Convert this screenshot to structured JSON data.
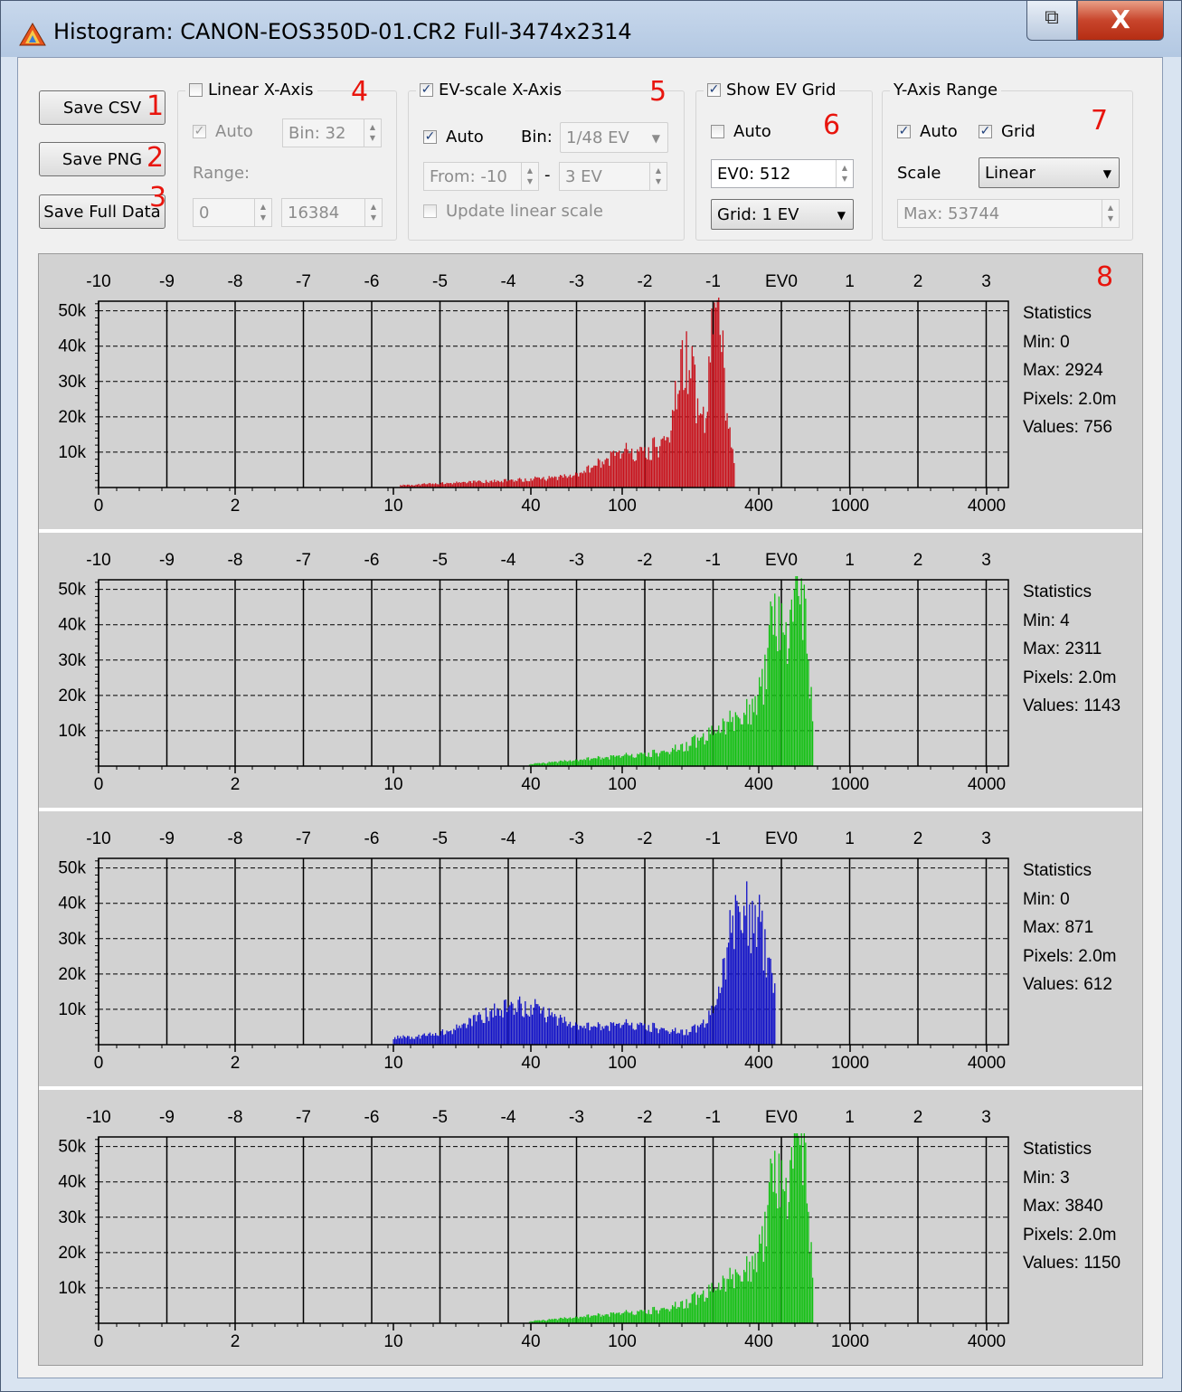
{
  "window": {
    "title": "Histogram: CANON-EOS350D-01.CR2 Full-3474x2314",
    "close_glyph": "X",
    "restore_glyph": "⧉"
  },
  "buttons": {
    "save_csv": "Save CSV",
    "save_png": "Save PNG",
    "save_full_data": "Save Full Data"
  },
  "linear_axis": {
    "title": "Linear X-Axis",
    "checked": false,
    "auto_label": "Auto",
    "auto_checked": true,
    "bin": "Bin: 32",
    "range_label": "Range:",
    "range_from": "0",
    "range_to": "16384"
  },
  "ev_axis": {
    "title": "EV-scale X-Axis",
    "checked": true,
    "auto_label": "Auto",
    "auto_checked": true,
    "bin_label": "Bin:",
    "bin_value": "1/48 EV",
    "from": "From: -10",
    "dash": "-",
    "to": "3 EV",
    "update_label": "Update linear scale",
    "update_checked": false
  },
  "ev_grid": {
    "title": "Show EV Grid",
    "checked": true,
    "auto_label": "Auto",
    "auto_checked": false,
    "ev0": "EV0: 512",
    "grid": "Grid: 1 EV"
  },
  "y_axis": {
    "title": "Y-Axis Range",
    "auto_label": "Auto",
    "auto_checked": true,
    "grid_label": "Grid",
    "grid_checked": true,
    "scale_label": "Scale",
    "scale_value": "Linear",
    "max": "Max: 53744"
  },
  "annotations": [
    "1",
    "2",
    "3",
    "4",
    "5",
    "6",
    "7",
    "8"
  ],
  "axes": {
    "ev_ticks": [
      "-10",
      "-9",
      "-8",
      "-7",
      "-6",
      "-5",
      "-4",
      "-3",
      "-2",
      "-1",
      "EV0",
      "1",
      "2",
      "3"
    ],
    "linear_ticks": [
      "0",
      "2",
      "10",
      "40",
      "100",
      "400",
      "1000",
      "4000"
    ],
    "y_ticks": [
      "50k",
      "40k",
      "30k",
      "20k",
      "10k"
    ]
  },
  "histograms": [
    {
      "channel": "red",
      "color": "#c8101a",
      "stats_title": "Statistics",
      "min": "Min: 0",
      "max": "Max: 2924",
      "pixels": "Pixels: 2.0m",
      "values": "Values: 756"
    },
    {
      "channel": "green",
      "color": "#11c011",
      "stats_title": "Statistics",
      "min": "Min: 4",
      "max": "Max: 2311",
      "pixels": "Pixels: 2.0m",
      "values": "Values: 1143"
    },
    {
      "channel": "blue",
      "color": "#1010c8",
      "stats_title": "Statistics",
      "min": "Min: 0",
      "max": "Max: 871",
      "pixels": "Pixels: 2.0m",
      "values": "Values: 612"
    },
    {
      "channel": "green2",
      "color": "#11c011",
      "stats_title": "Statistics",
      "min": "Min: 3",
      "max": "Max: 3840",
      "pixels": "Pixels: 2.0m",
      "values": "Values: 1150"
    }
  ]
}
